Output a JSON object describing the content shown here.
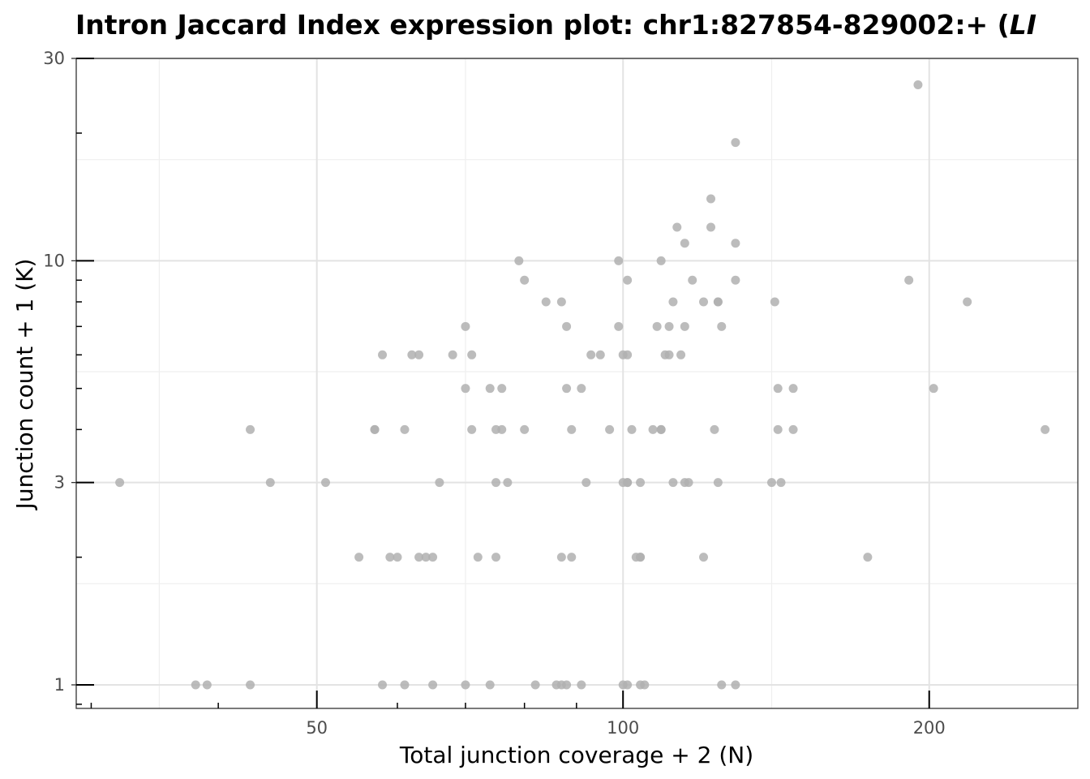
{
  "chart_data": {
    "type": "scatter",
    "title": "Intron Jaccard Index expression plot: chr1:827854-829002:+ (",
    "title_gene": "LI",
    "xlabel": "Total junction coverage + 2 (N)",
    "ylabel": "Junction count + 1 (K)",
    "x_scale": "log",
    "y_scale": "log",
    "xlim": [
      29,
      280
    ],
    "ylim": [
      0.88,
      30
    ],
    "x_ticks": [
      50,
      100,
      200
    ],
    "x_tick_labels": [
      "50",
      "100",
      "200"
    ],
    "y_ticks": [
      1,
      3,
      10,
      30
    ],
    "y_tick_labels": [
      "1",
      "3",
      "10",
      "30"
    ],
    "grid": true,
    "point_color": "#b0b0b0",
    "points": [
      {
        "x": 32,
        "y": 3
      },
      {
        "x": 38,
        "y": 1
      },
      {
        "x": 39,
        "y": 1
      },
      {
        "x": 43,
        "y": 1
      },
      {
        "x": 43,
        "y": 4
      },
      {
        "x": 45,
        "y": 3
      },
      {
        "x": 51,
        "y": 3
      },
      {
        "x": 55,
        "y": 2
      },
      {
        "x": 57,
        "y": 4
      },
      {
        "x": 57,
        "y": 4
      },
      {
        "x": 58,
        "y": 1
      },
      {
        "x": 58,
        "y": 6
      },
      {
        "x": 59,
        "y": 2
      },
      {
        "x": 60,
        "y": 2
      },
      {
        "x": 61,
        "y": 1
      },
      {
        "x": 61,
        "y": 4
      },
      {
        "x": 62,
        "y": 6
      },
      {
        "x": 63,
        "y": 6
      },
      {
        "x": 63,
        "y": 2
      },
      {
        "x": 64,
        "y": 2
      },
      {
        "x": 65,
        "y": 1
      },
      {
        "x": 65,
        "y": 2
      },
      {
        "x": 66,
        "y": 3
      },
      {
        "x": 68,
        "y": 6
      },
      {
        "x": 70,
        "y": 1
      },
      {
        "x": 70,
        "y": 5
      },
      {
        "x": 70,
        "y": 7
      },
      {
        "x": 71,
        "y": 6
      },
      {
        "x": 71,
        "y": 4
      },
      {
        "x": 72,
        "y": 2
      },
      {
        "x": 74,
        "y": 1
      },
      {
        "x": 74,
        "y": 5
      },
      {
        "x": 75,
        "y": 4
      },
      {
        "x": 75,
        "y": 3
      },
      {
        "x": 75,
        "y": 2
      },
      {
        "x": 76,
        "y": 4
      },
      {
        "x": 76,
        "y": 5
      },
      {
        "x": 77,
        "y": 3
      },
      {
        "x": 79,
        "y": 10
      },
      {
        "x": 80,
        "y": 9
      },
      {
        "x": 80,
        "y": 4
      },
      {
        "x": 82,
        "y": 1
      },
      {
        "x": 84,
        "y": 8
      },
      {
        "x": 86,
        "y": 1
      },
      {
        "x": 87,
        "y": 1
      },
      {
        "x": 87,
        "y": 8
      },
      {
        "x": 87,
        "y": 2
      },
      {
        "x": 88,
        "y": 1
      },
      {
        "x": 88,
        "y": 7
      },
      {
        "x": 88,
        "y": 5
      },
      {
        "x": 89,
        "y": 4
      },
      {
        "x": 89,
        "y": 2
      },
      {
        "x": 91,
        "y": 1
      },
      {
        "x": 91,
        "y": 5
      },
      {
        "x": 92,
        "y": 3
      },
      {
        "x": 93,
        "y": 6
      },
      {
        "x": 95,
        "y": 6
      },
      {
        "x": 97,
        "y": 4
      },
      {
        "x": 99,
        "y": 10
      },
      {
        "x": 99,
        "y": 7
      },
      {
        "x": 100,
        "y": 1
      },
      {
        "x": 100,
        "y": 6
      },
      {
        "x": 100,
        "y": 3
      },
      {
        "x": 101,
        "y": 1
      },
      {
        "x": 101,
        "y": 9
      },
      {
        "x": 101,
        "y": 6
      },
      {
        "x": 101,
        "y": 3
      },
      {
        "x": 101,
        "y": 3
      },
      {
        "x": 102,
        "y": 4
      },
      {
        "x": 103,
        "y": 2
      },
      {
        "x": 104,
        "y": 1
      },
      {
        "x": 104,
        "y": 3
      },
      {
        "x": 104,
        "y": 2
      },
      {
        "x": 104,
        "y": 2
      },
      {
        "x": 105,
        "y": 1
      },
      {
        "x": 107,
        "y": 4
      },
      {
        "x": 108,
        "y": 7
      },
      {
        "x": 109,
        "y": 10
      },
      {
        "x": 109,
        "y": 4
      },
      {
        "x": 109,
        "y": 4
      },
      {
        "x": 110,
        "y": 6
      },
      {
        "x": 111,
        "y": 7
      },
      {
        "x": 111,
        "y": 6
      },
      {
        "x": 112,
        "y": 8
      },
      {
        "x": 112,
        "y": 3
      },
      {
        "x": 113,
        "y": 12
      },
      {
        "x": 114,
        "y": 6
      },
      {
        "x": 115,
        "y": 11
      },
      {
        "x": 115,
        "y": 7
      },
      {
        "x": 115,
        "y": 3
      },
      {
        "x": 116,
        "y": 3
      },
      {
        "x": 117,
        "y": 9
      },
      {
        "x": 120,
        "y": 8
      },
      {
        "x": 120,
        "y": 2
      },
      {
        "x": 122,
        "y": 14
      },
      {
        "x": 122,
        "y": 12
      },
      {
        "x": 123,
        "y": 4
      },
      {
        "x": 124,
        "y": 8
      },
      {
        "x": 124,
        "y": 8
      },
      {
        "x": 124,
        "y": 3
      },
      {
        "x": 125,
        "y": 7
      },
      {
        "x": 125,
        "y": 1
      },
      {
        "x": 129,
        "y": 19
      },
      {
        "x": 129,
        "y": 11
      },
      {
        "x": 129,
        "y": 9
      },
      {
        "x": 129,
        "y": 1
      },
      {
        "x": 140,
        "y": 3
      },
      {
        "x": 141,
        "y": 8
      },
      {
        "x": 142,
        "y": 5
      },
      {
        "x": 142,
        "y": 4
      },
      {
        "x": 143,
        "y": 3
      },
      {
        "x": 147,
        "y": 5
      },
      {
        "x": 147,
        "y": 4
      },
      {
        "x": 174,
        "y": 2
      },
      {
        "x": 191,
        "y": 9
      },
      {
        "x": 195,
        "y": 26
      },
      {
        "x": 202,
        "y": 5
      },
      {
        "x": 218,
        "y": 8
      },
      {
        "x": 260,
        "y": 4
      }
    ]
  }
}
